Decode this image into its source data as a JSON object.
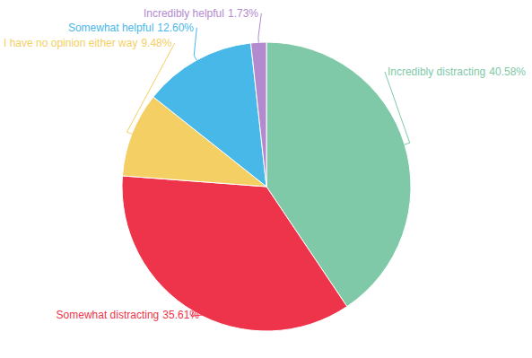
{
  "chart_data": {
    "type": "pie",
    "categories": [
      "Incredibly distracting",
      "Somewhat distracting",
      "I have no opinion either way",
      "Somewhat helpful",
      "Incredibly helpful"
    ],
    "values": [
      40.58,
      35.61,
      9.48,
      12.6,
      1.73
    ],
    "value_labels": [
      "40.58%",
      "35.61%",
      "9.48%",
      "12.60%",
      "1.73%"
    ],
    "colors": [
      "#80c9a8",
      "#ee344a",
      "#f4cf63",
      "#47b8e8",
      "#b38ace"
    ],
    "data_labels": true
  }
}
